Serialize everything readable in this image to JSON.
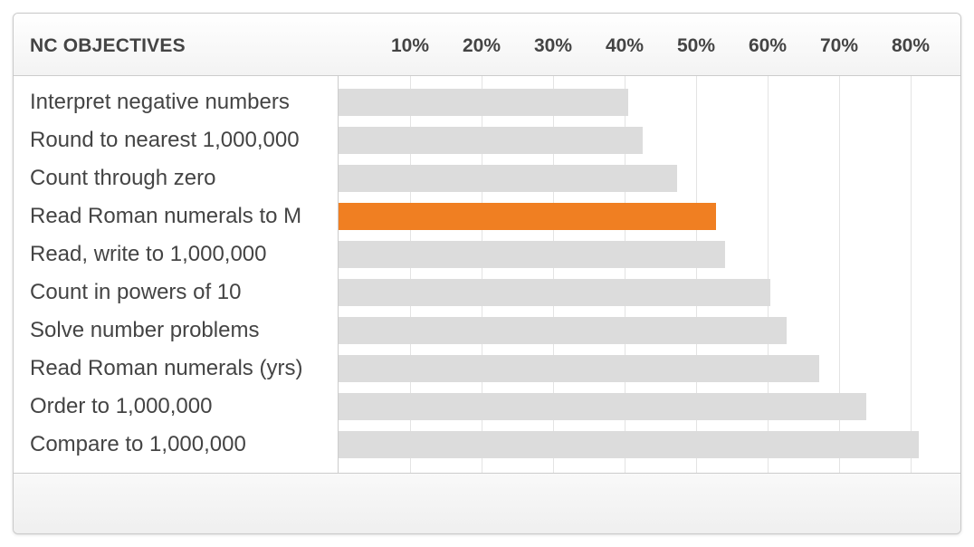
{
  "header": {
    "title": "NC OBJECTIVES"
  },
  "colors": {
    "default_bar": "#dcdcdc",
    "highlight_bar": "#f07f22",
    "text": "#444444"
  },
  "chart_data": {
    "type": "bar",
    "orientation": "horizontal",
    "x_ticks": [
      "10%",
      "20%",
      "30%",
      "40%",
      "50%",
      "60%",
      "70%",
      "80%"
    ],
    "xlim": [
      0,
      83
    ],
    "grid": true,
    "categories": [
      "Interpret negative numbers",
      "Round to nearest 1,000,000",
      "Count through zero",
      "Read Roman numerals to M",
      "Read, write to 1,000,000",
      "Count in powers of 10",
      "Solve number problems",
      "Read Roman numerals (yrs)",
      "Order to 1,000,000",
      "Compare to 1,000,000"
    ],
    "values": [
      40.5,
      42.5,
      47.3,
      52.8,
      54.0,
      60.4,
      62.6,
      67.2,
      73.8,
      81.2
    ],
    "highlight_index": 3
  }
}
